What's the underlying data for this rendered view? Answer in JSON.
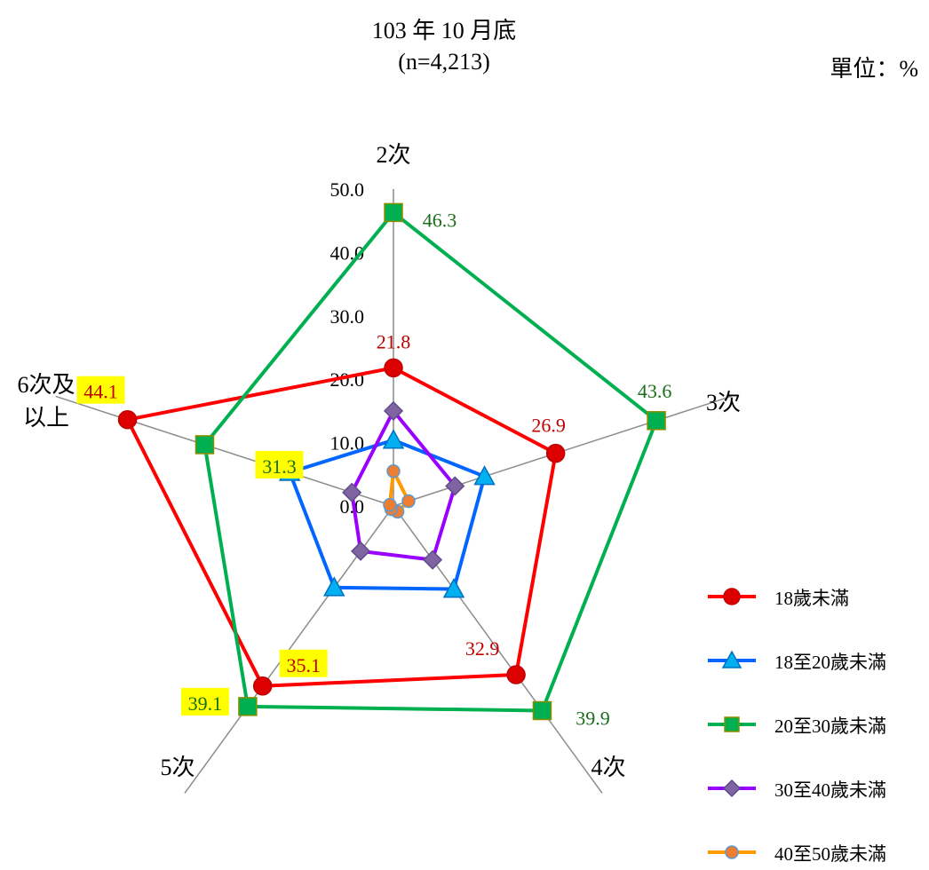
{
  "title": {
    "line1": "103 年 10 月底",
    "line2": "(n=4,213)"
  },
  "unit_label": "單位：%",
  "chart_data": {
    "type": "radar",
    "categories": [
      "2次",
      "3次",
      "4次",
      "5次",
      "6次及\n以上"
    ],
    "rlim": [
      0,
      50
    ],
    "ticks": [
      "0.0",
      "10.0",
      "20.0",
      "30.0",
      "40.0",
      "50.0"
    ],
    "tick_values": [
      0,
      10,
      20,
      30,
      40,
      50
    ],
    "grid": "spokes only",
    "legend_position": "right-bottom",
    "series": [
      {
        "name": "18歲未滿",
        "marker": "circle",
        "color": "#ff0000",
        "marker_fill": "#dd0000",
        "marker_stroke": "#c00000",
        "values": [
          21.8,
          26.9,
          32.9,
          35.1,
          44.1
        ],
        "labels": [
          "21.8",
          "26.9",
          "32.9",
          "35.1",
          "44.1"
        ],
        "label_color": "#c00000",
        "highlighted": [
          false,
          false,
          false,
          true,
          true
        ]
      },
      {
        "name": "18至20歲未滿",
        "marker": "triangle",
        "color": "#0066ff",
        "marker_fill": "#00b0f0",
        "marker_stroke": "#0070c0",
        "values": [
          10.4,
          15.1,
          16.2,
          15.9,
          17.2
        ]
      },
      {
        "name": "20至30歲未滿",
        "marker": "square",
        "color": "#00b050",
        "marker_fill": "#00b050",
        "marker_stroke": "#8c8c00",
        "values": [
          46.3,
          43.6,
          39.9,
          39.1,
          31.3
        ],
        "labels": [
          "46.3",
          "43.6",
          "39.9",
          "39.1",
          "31.3"
        ],
        "label_color": "#1a6e1a",
        "highlighted": [
          false,
          false,
          false,
          true,
          true
        ]
      },
      {
        "name": "30至40歲未滿",
        "marker": "diamond",
        "color": "#9900ff",
        "marker_fill": "#8064a2",
        "marker_stroke": "#5f4b8b",
        "values": [
          15.0,
          10.2,
          10.5,
          8.8,
          6.9
        ]
      },
      {
        "name": "40至50歲未滿",
        "marker": "circle-small",
        "color": "#ff9900",
        "marker_fill": "#ed7d31",
        "marker_stroke": "#5b9bd5",
        "values": [
          5.5,
          2.5,
          1.1,
          0.6,
          0.6
        ]
      }
    ]
  }
}
